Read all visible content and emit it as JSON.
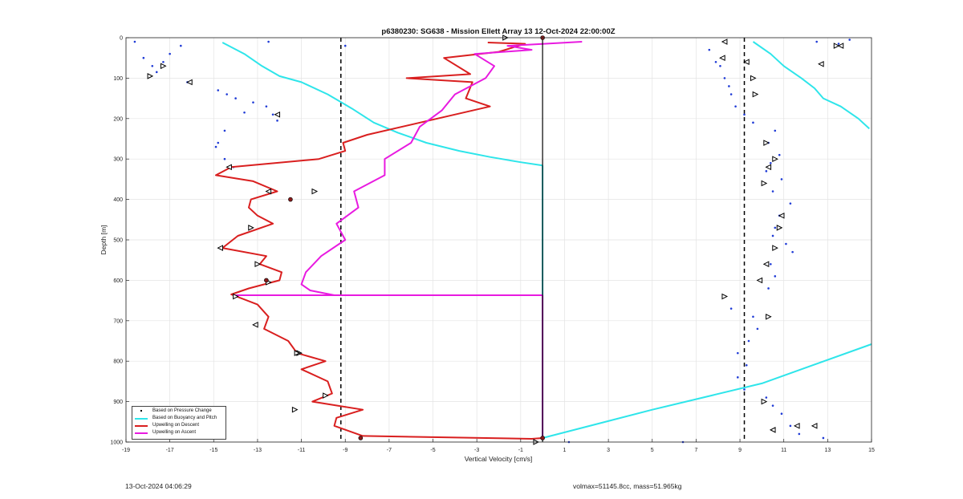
{
  "chart_data": {
    "type": "line",
    "title": "p6380230: SG638 - Mission Ellett Array 13 12-Oct-2024 22:00:00Z",
    "xlabel": "Vertical Velocity [cm/s]",
    "ylabel": "Depth [m]",
    "xlim": [
      -19,
      15
    ],
    "ylim": [
      0,
      1000
    ],
    "y_reversed": true,
    "xticks": [
      -19,
      -17,
      -15,
      -13,
      -11,
      -9,
      -7,
      -5,
      -3,
      -1,
      1,
      3,
      5,
      7,
      9,
      11,
      13,
      15
    ],
    "yticks": [
      0,
      100,
      200,
      300,
      400,
      500,
      600,
      700,
      800,
      900,
      1000
    ],
    "grid": true,
    "legend_position": "bottom-left",
    "reference_lines": {
      "dashed_x": [
        -9.2,
        9.2
      ],
      "solid_x": [
        0
      ]
    },
    "series": [
      {
        "name": "Based on Pressure Change",
        "style": "dots",
        "color": "#1f3bd6",
        "points": [
          [
            -18.6,
            10
          ],
          [
            -18.2,
            50
          ],
          [
            -17.8,
            70
          ],
          [
            -17.6,
            85
          ],
          [
            -17.9,
            95
          ],
          [
            -17.3,
            60
          ],
          [
            -17.0,
            40
          ],
          [
            -16.5,
            20
          ],
          [
            -16.2,
            110
          ],
          [
            -14.8,
            130
          ],
          [
            -14.4,
            140
          ],
          [
            -14.0,
            150
          ],
          [
            -13.2,
            160
          ],
          [
            -12.6,
            170
          ],
          [
            -12.3,
            190
          ],
          [
            -12.1,
            205
          ],
          [
            -13.6,
            185
          ],
          [
            -14.5,
            230
          ],
          [
            -14.8,
            260
          ],
          [
            -14.9,
            270
          ],
          [
            -14.5,
            300
          ],
          [
            -14.1,
            320
          ],
          [
            -9.0,
            20
          ],
          [
            -12.5,
            10
          ],
          [
            1.2,
            1000
          ],
          [
            6.4,
            1000
          ],
          [
            7.6,
            30
          ],
          [
            7.9,
            60
          ],
          [
            8.1,
            70
          ],
          [
            8.3,
            100
          ],
          [
            8.5,
            120
          ],
          [
            8.6,
            140
          ],
          [
            8.8,
            170
          ],
          [
            9.2,
            190
          ],
          [
            9.6,
            210
          ],
          [
            10.6,
            230
          ],
          [
            10.3,
            260
          ],
          [
            10.8,
            290
          ],
          [
            10.4,
            310
          ],
          [
            10.2,
            330
          ],
          [
            10.9,
            350
          ],
          [
            10.5,
            380
          ],
          [
            11.3,
            410
          ],
          [
            10.8,
            440
          ],
          [
            10.6,
            470
          ],
          [
            10.5,
            490
          ],
          [
            11.1,
            510
          ],
          [
            11.4,
            530
          ],
          [
            10.4,
            560
          ],
          [
            10.6,
            590
          ],
          [
            10.3,
            620
          ],
          [
            8.3,
            640
          ],
          [
            8.6,
            670
          ],
          [
            9.6,
            690
          ],
          [
            9.8,
            720
          ],
          [
            9.4,
            750
          ],
          [
            8.9,
            780
          ],
          [
            9.3,
            810
          ],
          [
            8.9,
            840
          ],
          [
            9.2,
            870
          ],
          [
            10.2,
            890
          ],
          [
            10.5,
            910
          ],
          [
            10.9,
            930
          ],
          [
            11.3,
            960
          ],
          [
            11.7,
            980
          ],
          [
            12.8,
            990
          ],
          [
            12.5,
            10
          ],
          [
            13.5,
            15
          ],
          [
            14.0,
            5
          ]
        ]
      },
      {
        "name": "Based on Buoyancy and Pitch",
        "style": "line",
        "color": "#2ee5ea",
        "segments": [
          [
            [
              -14.6,
              12
            ],
            [
              -13.6,
              40
            ],
            [
              -12.8,
              70
            ],
            [
              -12.0,
              95
            ],
            [
              -11.0,
              110
            ],
            [
              -9.8,
              140
            ],
            [
              -8.7,
              175
            ],
            [
              -7.7,
              210
            ],
            [
              -6.6,
              235
            ],
            [
              -5.3,
              260
            ],
            [
              -3.8,
              280
            ],
            [
              -2.4,
              295
            ],
            [
              -1.0,
              308
            ],
            [
              0,
              316
            ]
          ],
          [
            [
              0,
              316
            ],
            [
              0,
              990
            ]
          ],
          [
            [
              0,
              990
            ],
            [
              5,
              920
            ],
            [
              10,
              855
            ],
            [
              15,
              758
            ]
          ],
          [
            [
              9.6,
              10
            ],
            [
              10.4,
              40
            ],
            [
              11.0,
              70
            ],
            [
              11.8,
              100
            ],
            [
              12.4,
              125
            ],
            [
              12.8,
              150
            ],
            [
              13.6,
              170
            ],
            [
              14.4,
              200
            ],
            [
              14.9,
              225
            ]
          ]
        ]
      },
      {
        "name": "Upwelling on Descent",
        "style": "line",
        "color": "#d91f1f",
        "segments": [
          [
            [
              -2.5,
              12
            ],
            [
              -0.8,
              15
            ],
            [
              -2.0,
              35
            ],
            [
              -4.5,
              50
            ],
            [
              -3.3,
              90
            ],
            [
              -6.2,
              100
            ],
            [
              -3.2,
              110
            ],
            [
              -3.5,
              150
            ],
            [
              -2.4,
              170
            ],
            [
              -4.8,
              200
            ],
            [
              -8.0,
              240
            ],
            [
              -9.1,
              260
            ],
            [
              -9.0,
              280
            ],
            [
              -10.2,
              300
            ],
            [
              -14.2,
              320
            ],
            [
              -14.9,
              340
            ],
            [
              -13.2,
              355
            ],
            [
              -12.1,
              380
            ],
            [
              -13.3,
              400
            ],
            [
              -13.4,
              420
            ],
            [
              -13.0,
              440
            ],
            [
              -12.3,
              460
            ],
            [
              -13.9,
              490
            ],
            [
              -14.6,
              520
            ],
            [
              -12.6,
              540
            ],
            [
              -12.9,
              560
            ],
            [
              -11.9,
              580
            ],
            [
              -12.0,
              600
            ],
            [
              -13.4,
              620
            ],
            [
              -14.2,
              635
            ],
            [
              -13.0,
              660
            ],
            [
              -12.5,
              690
            ],
            [
              -12.7,
              720
            ],
            [
              -11.6,
              750
            ],
            [
              -11.2,
              780
            ],
            [
              -9.9,
              800
            ],
            [
              -11.0,
              820
            ],
            [
              -9.8,
              850
            ],
            [
              -9.6,
              880
            ],
            [
              -10.5,
              900
            ],
            [
              -8.2,
              920
            ],
            [
              -9.4,
              940
            ],
            [
              -9.5,
              960
            ],
            [
              -8.2,
              985
            ],
            [
              -0.5,
              992
            ],
            [
              0,
              990
            ]
          ]
        ]
      },
      {
        "name": "Upwelling on Ascent",
        "style": "line",
        "color": "#e81ae0",
        "segments": [
          [
            [
              1.8,
              10
            ],
            [
              -1.6,
              20
            ],
            [
              -0.5,
              30
            ],
            [
              -3.1,
              40
            ],
            [
              -2.2,
              70
            ],
            [
              -2.6,
              100
            ],
            [
              -4.0,
              140
            ],
            [
              -4.6,
              180
            ],
            [
              -5.6,
              220
            ],
            [
              -6.0,
              260
            ],
            [
              -7.2,
              300
            ],
            [
              -7.2,
              340
            ],
            [
              -8.6,
              380
            ],
            [
              -8.4,
              420
            ],
            [
              -9.4,
              460
            ],
            [
              -9.0,
              500
            ],
            [
              -10.1,
              540
            ],
            [
              -10.8,
              580
            ],
            [
              -11.0,
              610
            ],
            [
              -10.6,
              625
            ],
            [
              -9.5,
              637
            ]
          ],
          [
            [
              -14.0,
              637
            ],
            [
              0,
              637
            ]
          ],
          [
            [
              0,
              637
            ],
            [
              0,
              995
            ]
          ]
        ]
      },
      {
        "name": "",
        "style": "line",
        "color": "#000000",
        "segments": [
          [
            [
              0,
              0
            ],
            [
              0,
              1000
            ]
          ]
        ]
      }
    ],
    "markers": {
      "right_triangles": [
        [
          -1.7,
          0
        ],
        [
          -17.3,
          70
        ],
        [
          -17.9,
          95
        ],
        [
          -10.4,
          380
        ],
        [
          -13.3,
          470
        ],
        [
          -13.0,
          560
        ],
        [
          -12.5,
          605
        ],
        [
          -14.0,
          640
        ],
        [
          -11.1,
          780
        ],
        [
          -9.9,
          885
        ],
        [
          -11.3,
          920
        ],
        [
          -11.2,
          780
        ],
        [
          -0.3,
          1000
        ],
        [
          8.3,
          640
        ],
        [
          9.6,
          100
        ],
        [
          9.7,
          140
        ],
        [
          10.2,
          260
        ],
        [
          10.6,
          300
        ],
        [
          10.1,
          360
        ],
        [
          10.8,
          470
        ],
        [
          10.3,
          690
        ],
        [
          13.4,
          20
        ],
        [
          10.6,
          520
        ],
        [
          10.1,
          900
        ]
      ],
      "left_triangles": [
        [
          -16.1,
          110
        ],
        [
          -14.3,
          320
        ],
        [
          -14.7,
          520
        ],
        [
          -12.5,
          380
        ],
        [
          -13.1,
          710
        ],
        [
          -12.1,
          190
        ],
        [
          8.3,
          10
        ],
        [
          8.2,
          50
        ],
        [
          9.3,
          60
        ],
        [
          10.3,
          320
        ],
        [
          10.9,
          440
        ],
        [
          10.2,
          560
        ],
        [
          9.9,
          600
        ],
        [
          10.5,
          970
        ],
        [
          11.6,
          960
        ],
        [
          12.7,
          65
        ],
        [
          12.4,
          960
        ],
        [
          13.6,
          20
        ]
      ],
      "filled_circles": [
        [
          0,
          0
        ],
        [
          0,
          990
        ],
        [
          -8.3,
          990
        ],
        [
          -11.5,
          400
        ],
        [
          -12.6,
          600
        ]
      ]
    },
    "legend_entries": [
      {
        "label": "Based on Pressure Change",
        "color": "#000000",
        "type": "dot"
      },
      {
        "label": "Based on Buoyancy and Pitch",
        "color": "#2ee5ea",
        "type": "line"
      },
      {
        "label": "Upwelling on Descent",
        "color": "#d91f1f",
        "type": "line"
      },
      {
        "label": "Upwelling on Ascent",
        "color": "#e81ae0",
        "type": "line"
      }
    ]
  },
  "footer": {
    "timestamp": "13-Oct-2024 04:06:29",
    "stats": "volmax=51145.8cc, mass=51.965kg"
  }
}
